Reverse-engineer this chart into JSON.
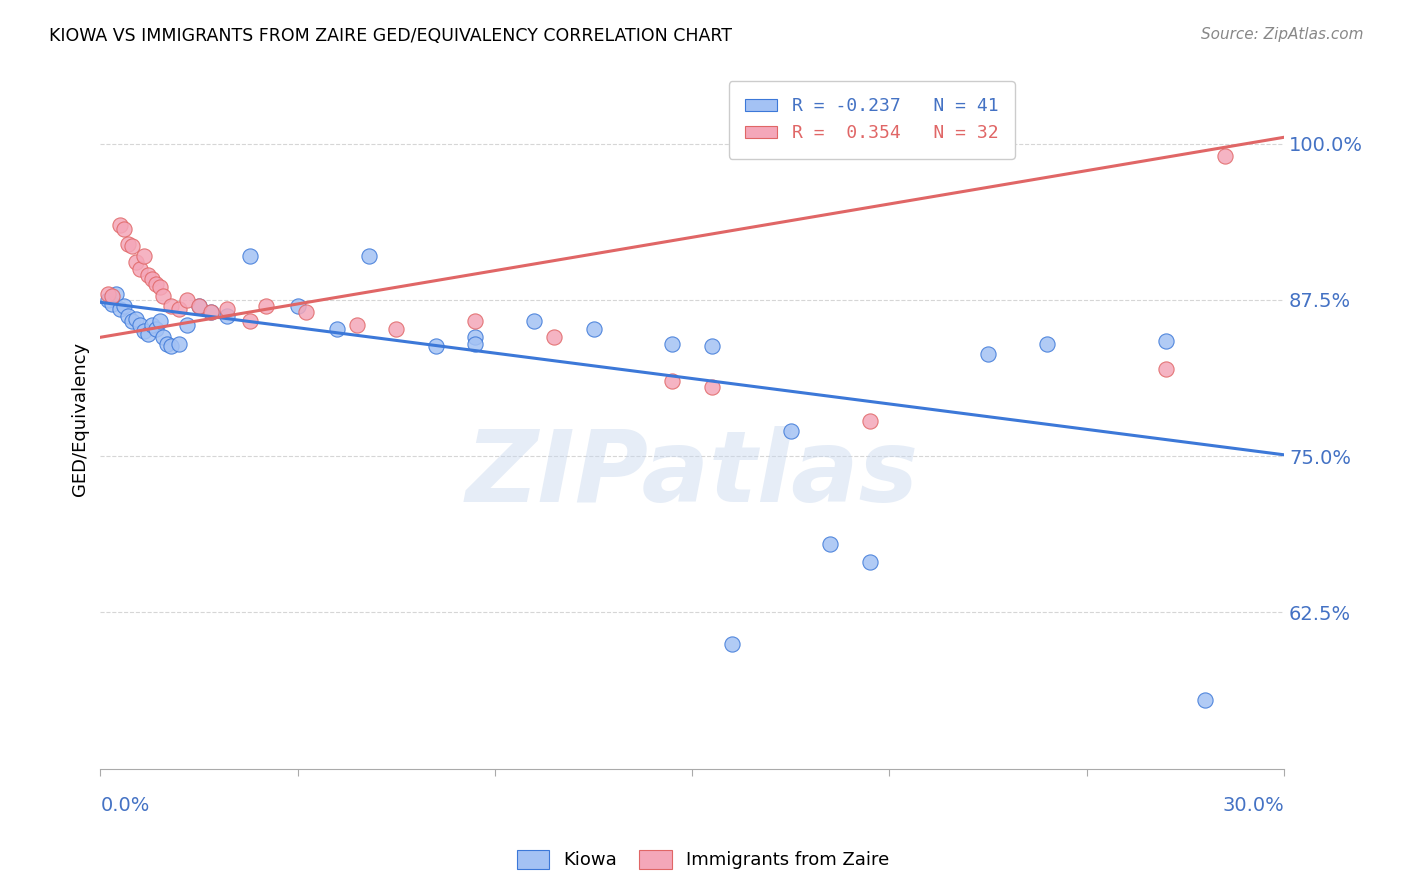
{
  "title": "KIOWA VS IMMIGRANTS FROM ZAIRE GED/EQUIVALENCY CORRELATION CHART",
  "source": "Source: ZipAtlas.com",
  "ylabel": "GED/Equivalency",
  "yticks": [
    0.625,
    0.75,
    0.875,
    1.0
  ],
  "ytick_labels": [
    "62.5%",
    "75.0%",
    "87.5%",
    "100.0%"
  ],
  "xlim": [
    0.0,
    0.3
  ],
  "ylim": [
    0.5,
    1.06
  ],
  "legend_r1": "R = -0.237",
  "legend_n1": "N = 41",
  "legend_r2": "R =  0.354",
  "legend_n2": "N = 32",
  "blue_color": "#a4c2f4",
  "pink_color": "#f4a7b9",
  "line_blue": "#3c78d8",
  "line_pink": "#e06666",
  "watermark": "ZIPatlas",
  "blue_line_x": [
    0.0,
    0.3
  ],
  "blue_line_y": [
    0.873,
    0.751
  ],
  "pink_line_x": [
    0.0,
    0.3
  ],
  "pink_line_y": [
    0.845,
    1.005
  ],
  "kiowa_x": [
    0.002,
    0.003,
    0.004,
    0.005,
    0.006,
    0.007,
    0.008,
    0.009,
    0.01,
    0.011,
    0.012,
    0.013,
    0.014,
    0.015,
    0.016,
    0.017,
    0.018,
    0.02,
    0.022,
    0.025,
    0.028,
    0.032,
    0.038,
    0.05,
    0.06,
    0.068,
    0.085,
    0.095,
    0.11,
    0.125,
    0.145,
    0.155,
    0.175,
    0.185,
    0.195,
    0.225,
    0.24,
    0.27,
    0.095,
    0.16,
    0.28
  ],
  "kiowa_y": [
    0.875,
    0.872,
    0.88,
    0.868,
    0.87,
    0.862,
    0.858,
    0.86,
    0.855,
    0.85,
    0.848,
    0.855,
    0.852,
    0.858,
    0.845,
    0.84,
    0.838,
    0.84,
    0.855,
    0.87,
    0.865,
    0.862,
    0.91,
    0.87,
    0.852,
    0.91,
    0.838,
    0.845,
    0.858,
    0.852,
    0.84,
    0.838,
    0.77,
    0.68,
    0.665,
    0.832,
    0.84,
    0.842,
    0.84,
    0.6,
    0.555
  ],
  "zaire_x": [
    0.002,
    0.003,
    0.005,
    0.006,
    0.007,
    0.008,
    0.009,
    0.01,
    0.011,
    0.012,
    0.013,
    0.014,
    0.015,
    0.016,
    0.018,
    0.02,
    0.022,
    0.025,
    0.028,
    0.032,
    0.038,
    0.042,
    0.052,
    0.065,
    0.075,
    0.095,
    0.115,
    0.145,
    0.155,
    0.195,
    0.27,
    0.285
  ],
  "zaire_y": [
    0.88,
    0.878,
    0.935,
    0.932,
    0.92,
    0.918,
    0.905,
    0.9,
    0.91,
    0.895,
    0.892,
    0.888,
    0.885,
    0.878,
    0.87,
    0.868,
    0.875,
    0.87,
    0.865,
    0.868,
    0.858,
    0.87,
    0.865,
    0.855,
    0.852,
    0.858,
    0.845,
    0.81,
    0.805,
    0.778,
    0.82,
    0.99
  ]
}
